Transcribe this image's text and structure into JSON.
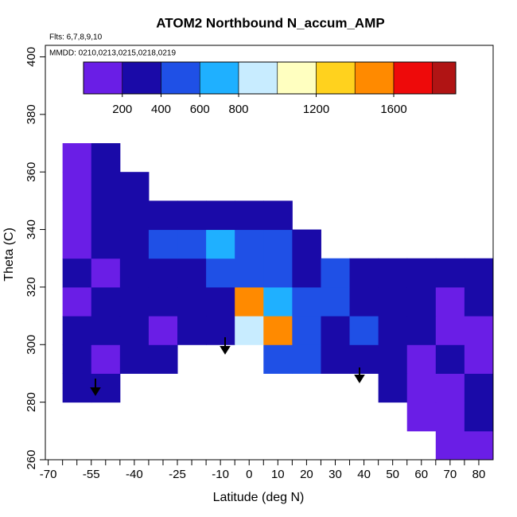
{
  "chart_data": {
    "type": "heatmap",
    "title": "ATOM2 Northbound N_accum_AMP",
    "annotations": [
      "Flts: 6,7,8,9,10",
      "MMDD: 0210,0213,0215,0218,0219"
    ],
    "x_label": "Latitude (deg N)",
    "y_label": "Theta (C)",
    "xlim": [
      -71,
      85
    ],
    "ylim": [
      260,
      404
    ],
    "xticks": [
      -70,
      -55,
      -40,
      -25,
      -10,
      0,
      10,
      20,
      30,
      40,
      50,
      60,
      70,
      80
    ],
    "xminorticks": [
      -65,
      -60,
      -50,
      -45,
      -35,
      -30,
      -20,
      -15,
      -5,
      5,
      15,
      25,
      35,
      45,
      55,
      65,
      75
    ],
    "yticks": [
      260,
      280,
      300,
      320,
      340,
      360,
      380,
      400
    ],
    "x": [
      -60,
      -50,
      -40,
      -30,
      -20,
      -10,
      0,
      10,
      20,
      30,
      40,
      50,
      60,
      70,
      80
    ],
    "y": [
      265,
      275,
      285,
      295,
      305,
      315,
      325,
      335,
      345,
      355,
      365
    ],
    "values": [
      [
        null,
        null,
        null,
        null,
        null,
        null,
        null,
        null,
        null,
        null,
        null,
        null,
        null,
        150,
        180
      ],
      [
        null,
        null,
        null,
        null,
        null,
        null,
        null,
        null,
        null,
        null,
        null,
        null,
        120,
        150,
        200
      ],
      [
        250,
        220,
        null,
        null,
        null,
        null,
        null,
        null,
        null,
        null,
        null,
        200,
        120,
        150,
        200
      ],
      [
        200,
        180,
        200,
        250,
        null,
        null,
        null,
        400,
        500,
        300,
        280,
        250,
        150,
        200,
        150
      ],
      [
        200,
        220,
        250,
        180,
        200,
        300,
        900,
        1500,
        400,
        350,
        450,
        250,
        200,
        150,
        180
      ],
      [
        180,
        200,
        220,
        250,
        250,
        350,
        1400,
        600,
        400,
        400,
        300,
        250,
        200,
        180,
        200
      ],
      [
        200,
        150,
        200,
        200,
        300,
        400,
        500,
        400,
        350,
        400,
        300,
        250,
        250,
        200,
        200
      ],
      [
        180,
        200,
        300,
        400,
        500,
        600,
        450,
        400,
        350,
        null,
        null,
        null,
        null,
        null,
        null
      ],
      [
        180,
        250,
        300,
        350,
        250,
        200,
        300,
        250,
        null,
        null,
        null,
        null,
        null,
        null,
        null
      ],
      [
        150,
        200,
        250,
        null,
        null,
        null,
        null,
        null,
        null,
        null,
        null,
        null,
        null,
        null,
        null
      ],
      [
        150,
        200,
        null,
        null,
        null,
        null,
        null,
        null,
        null,
        null,
        null,
        null,
        null,
        null,
        null
      ]
    ],
    "colorbar": {
      "lim": [
        0,
        1920
      ],
      "breaks": [
        0,
        200,
        400,
        600,
        800,
        1000,
        1200,
        1400,
        1600,
        1800,
        1920
      ],
      "colors": [
        "#6a1ee6",
        "#1a0aa8",
        "#1f50e6",
        "#1fb0ff",
        "#c8ecff",
        "#ffffc0",
        "#ffd21e",
        "#ff8a00",
        "#ee0a0a",
        "#b01414"
      ],
      "ticks": [
        200,
        400,
        600,
        800,
        1200,
        1600
      ]
    }
  }
}
